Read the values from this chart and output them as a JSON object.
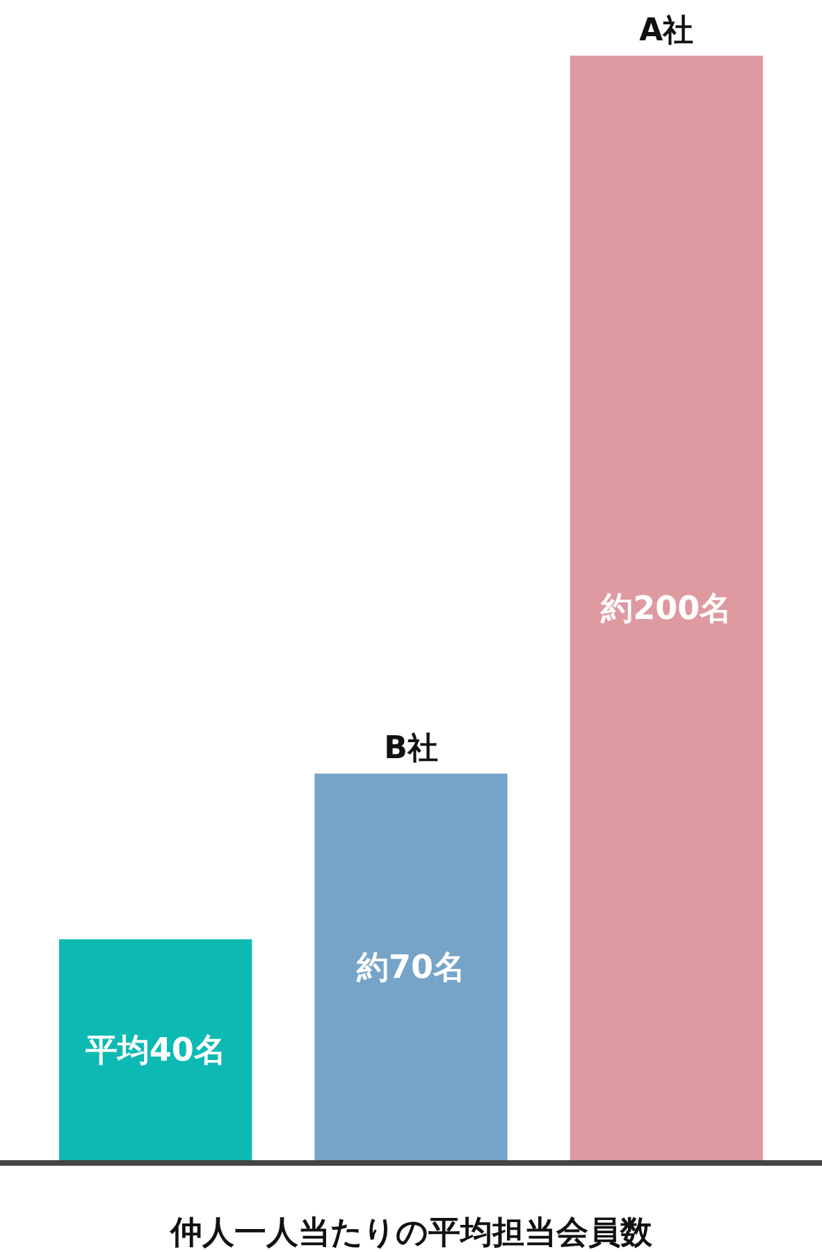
{
  "chart_data": {
    "type": "bar",
    "xlabel": "仲人一人当たりの平均担当会員数",
    "categories": [
      null,
      "B社",
      "A社"
    ],
    "values": [
      40,
      70,
      200
    ],
    "colors": [
      "#0dbab3",
      "#76a4c8",
      "#de9aa0"
    ],
    "value_labels": [
      "平均40名",
      "約70名",
      "約200名"
    ]
  }
}
